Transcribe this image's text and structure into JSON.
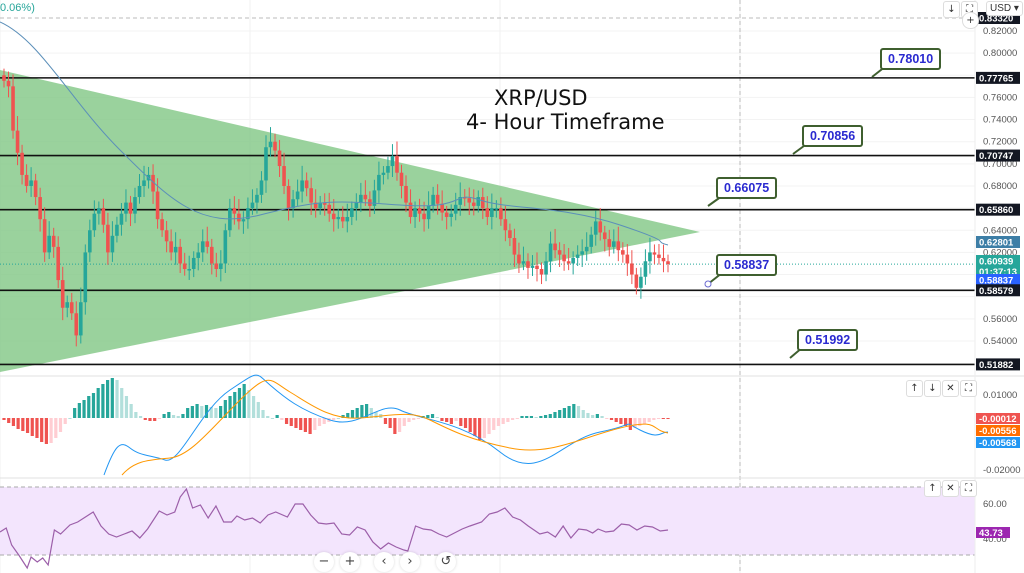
{
  "header": {
    "change_pct": "0.06%)",
    "currency_selector": "USD",
    "scroll_down_icon": "↓",
    "fullscreen_icon": "⛶",
    "add_icon": "+"
  },
  "title": {
    "line1": "XRP/USD",
    "line2": "4- Hour Timeframe"
  },
  "price_axis": {
    "ticks": [
      "0.82000",
      "0.80000",
      "0.76000",
      "0.74000",
      "0.72000",
      "0.70000",
      "0.68000",
      "0.64000",
      "0.62000",
      "0.56000",
      "0.54000"
    ],
    "level_tags": [
      {
        "value": "0.83320",
        "color": "#131722",
        "text_color": "#ffffff"
      },
      {
        "value": "0.77765",
        "color": "#131722",
        "text_color": "#ffffff"
      },
      {
        "value": "0.70747",
        "color": "#131722",
        "text_color": "#ffffff"
      },
      {
        "value": "0.65860",
        "color": "#131722",
        "text_color": "#ffffff"
      },
      {
        "value": "0.62801",
        "color": "#3d7ea6",
        "text_color": "#ffffff"
      },
      {
        "value": "0.60939",
        "color": "#26a69a",
        "text_color": "#ffffff"
      },
      {
        "value": "0.58837",
        "color": "#2962ff",
        "text_color": "#ffffff"
      },
      {
        "value": "0.58579",
        "color": "#131722",
        "text_color": "#ffffff"
      },
      {
        "value": "0.51882",
        "color": "#131722",
        "text_color": "#ffffff"
      }
    ],
    "countdown": "01:37:13"
  },
  "callouts": [
    {
      "label": "0.78010"
    },
    {
      "label": "0.70856"
    },
    {
      "label": "0.66075"
    },
    {
      "label": "0.58837"
    },
    {
      "label": "0.51992"
    }
  ],
  "macd": {
    "ticks": [
      "0.01000",
      "-0.02000"
    ],
    "tags": [
      {
        "value": "-0.00012",
        "color": "#ef5350"
      },
      {
        "value": "-0.00556",
        "color": "#ff6d00"
      },
      {
        "value": "-0.00568",
        "color": "#2196f3"
      }
    ],
    "buttons": [
      "↑",
      "↓",
      "✕",
      "⛶"
    ]
  },
  "rsi": {
    "ticks": [
      "60.00",
      "40.00"
    ],
    "tag": {
      "value": "43.73",
      "color": "#9c27b0"
    },
    "buttons": [
      "↑",
      "✕",
      "⛶"
    ]
  },
  "nav": {
    "zoom_out": "−",
    "zoom_in": "+",
    "scroll_left": "‹",
    "scroll_right": "›",
    "reset": "↺"
  },
  "colors": {
    "up": "#26a69a",
    "down": "#ef5350",
    "triangle": "#81c784",
    "ma": "#5b8fb9",
    "rsi_fill": "#f3e5fd",
    "rsi_line": "#9c5fa9"
  },
  "chart_data": {
    "type": "candlestick",
    "title": "XRP/USD 4- Hour Timeframe",
    "horizontal_levels": [
      0.77765,
      0.70747,
      0.6586,
      0.58579,
      0.51882
    ],
    "annotations": [
      0.7801,
      0.70856,
      0.66075,
      0.58837,
      0.51992
    ],
    "last_price": 0.60939,
    "ma_value": 0.62801,
    "ylim": [
      0.51,
      0.84
    ]
  }
}
